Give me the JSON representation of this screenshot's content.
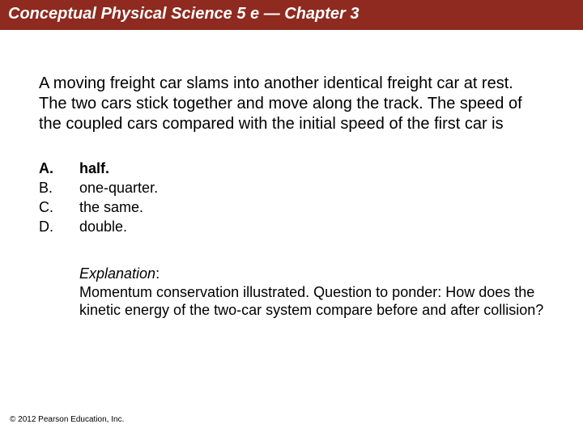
{
  "header": {
    "title": "Conceptual Physical Science 5 e — Chapter 3",
    "background_color": "#8e2a1f",
    "text_color": "#ffffff"
  },
  "question": {
    "text": "A moving freight car slams into another identical freight car at rest. The two cars stick together and move along the track. The speed of the coupled cars compared with the initial speed of the first car is"
  },
  "options": [
    {
      "letter": "A.",
      "text": "half.",
      "correct": true
    },
    {
      "letter": "B.",
      "text": "one-quarter.",
      "correct": false
    },
    {
      "letter": "C.",
      "text": "the same.",
      "correct": false
    },
    {
      "letter": "D.",
      "text": "double.",
      "correct": false
    }
  ],
  "explanation": {
    "label": "Explanation",
    "text": "Momentum conservation illustrated. Question to ponder: How does the kinetic energy of the two-car system compare before and after collision?"
  },
  "copyright": "© 2012 Pearson Education, Inc."
}
